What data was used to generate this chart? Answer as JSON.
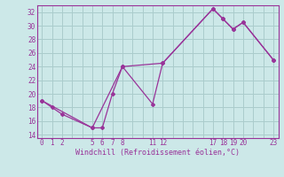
{
  "xlabel": "Windchill (Refroidissement éolien,°C)",
  "bg_color": "#cce8e8",
  "grid_color": "#aacccc",
  "line_color": "#993399",
  "xlim": [
    -0.5,
    23.5
  ],
  "ylim": [
    13.5,
    33.0
  ],
  "xticks": [
    0,
    1,
    2,
    3,
    4,
    5,
    6,
    7,
    8,
    9,
    10,
    11,
    12,
    13,
    14,
    15,
    16,
    17,
    18,
    19,
    20,
    21,
    22,
    23
  ],
  "xtick_labels": [
    "0",
    "1",
    "2",
    "",
    "",
    "5",
    "6",
    "7",
    "8",
    "",
    "",
    "11",
    "12",
    "",
    "",
    "",
    "",
    "17",
    "18",
    "19",
    "20",
    "",
    "",
    "23"
  ],
  "yticks": [
    14,
    16,
    18,
    20,
    22,
    24,
    26,
    28,
    30,
    32
  ],
  "line1_x": [
    0,
    1,
    2,
    5,
    6,
    7,
    8,
    11,
    12,
    17,
    18,
    19,
    20,
    23
  ],
  "line1_y": [
    19.0,
    18.0,
    17.0,
    15.0,
    15.0,
    20.0,
    24.0,
    18.5,
    24.5,
    32.5,
    31.0,
    29.5,
    30.5,
    25.0
  ],
  "line2_x": [
    0,
    5,
    8,
    12,
    17,
    18,
    19,
    20,
    23
  ],
  "line2_y": [
    19.0,
    15.0,
    24.0,
    24.5,
    32.5,
    31.0,
    29.5,
    30.5,
    25.0
  ]
}
